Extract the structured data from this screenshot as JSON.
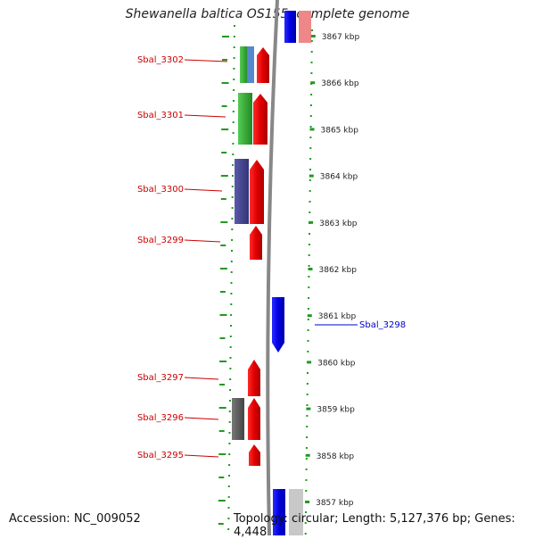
{
  "title": "Shewanella baltica OS155, complete genome",
  "footer": {
    "accession": "Accession: NC_009052",
    "topology": "Topology: circular; Length: 5,127,376 bp; Genes: 4,448"
  },
  "scale": {
    "unit": "kbp",
    "ticks": [
      {
        "kbp": 3867,
        "label": "3867 kbp"
      },
      {
        "kbp": 3866,
        "label": "3866 kbp"
      },
      {
        "kbp": 3865,
        "label": "3865 kbp"
      },
      {
        "kbp": 3864,
        "label": "3864 kbp"
      },
      {
        "kbp": 3863,
        "label": "3863 kbp"
      },
      {
        "kbp": 3862,
        "label": "3862 kbp"
      },
      {
        "kbp": 3861,
        "label": "3861 kbp"
      },
      {
        "kbp": 3860,
        "label": "3860 kbp"
      },
      {
        "kbp": 3859,
        "label": "3859 kbp"
      },
      {
        "kbp": 3858,
        "label": "3858 kbp"
      },
      {
        "kbp": 3857,
        "label": "3857 kbp"
      }
    ]
  },
  "gene_labels": [
    {
      "name": "Sbal_3302",
      "strand": "left",
      "color": "#cc0000"
    },
    {
      "name": "Sbal_3301",
      "strand": "left",
      "color": "#cc0000"
    },
    {
      "name": "Sbal_3300",
      "strand": "left",
      "color": "#cc0000"
    },
    {
      "name": "Sbal_3299",
      "strand": "left",
      "color": "#cc0000"
    },
    {
      "name": "Sbal_3298",
      "strand": "right",
      "color": "#0000cc"
    },
    {
      "name": "Sbal_3297",
      "strand": "left",
      "color": "#cc0000"
    },
    {
      "name": "Sbal_3296",
      "strand": "left",
      "color": "#cc0000"
    },
    {
      "name": "Sbal_3295",
      "strand": "left",
      "color": "#cc0000"
    }
  ],
  "colors": {
    "forward_gene": "#ff0000",
    "reverse_gene": "#0000ff",
    "cog_green": "#33bb33",
    "cog_navy": "#4a4a99",
    "cog_grey": "#666666",
    "dots": "#229922",
    "backbone": "#888888"
  }
}
